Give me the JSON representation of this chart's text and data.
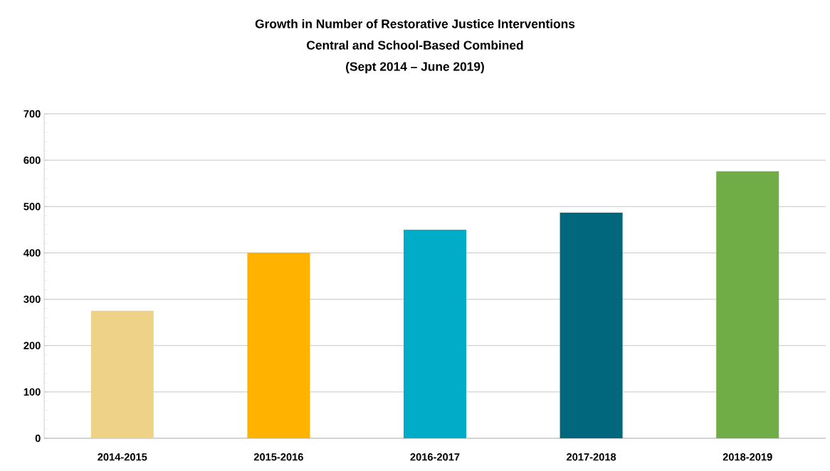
{
  "chart_data": {
    "type": "bar",
    "title": "Growth in Number of Restorative Justice Interventions\nCentral and School-Based Combined\n(Sept 2014 – June 2019)",
    "categories": [
      "2014-2015",
      "2015-2016",
      "2016-2017",
      "2017-2018",
      "2018-2019"
    ],
    "values": [
      275,
      401,
      450,
      487,
      576
    ],
    "colors": [
      "#edd287",
      "#ffb300",
      "#00acc8",
      "#00677d",
      "#70ad47"
    ],
    "ylim": [
      0,
      700
    ],
    "yticks": [
      0,
      100,
      200,
      300,
      400,
      500,
      600,
      700
    ],
    "grid": "y"
  }
}
